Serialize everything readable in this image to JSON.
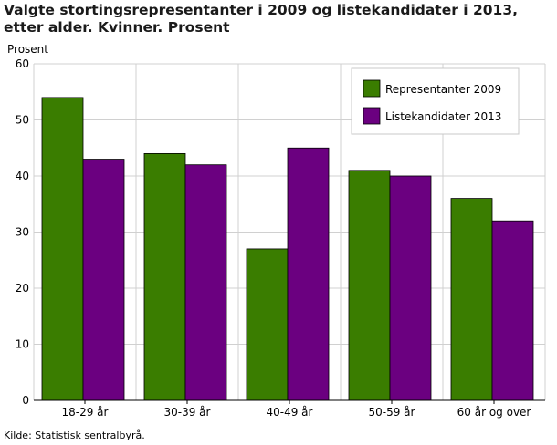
{
  "title": "Valgte stortingsrepresentanter i 2009 og listekandidater i 2013, etter alder. Kvinner. Prosent",
  "source": "Kilde: Statistisk sentralbyrå.",
  "chart_data": {
    "type": "bar",
    "title": "Valgte stortingsrepresentanter i 2009 og listekandidater i 2013, etter alder. Kvinner. Prosent",
    "xlabel": "",
    "ylabel": "Prosent",
    "ylim": [
      0,
      60
    ],
    "yticks": [
      0,
      10,
      20,
      30,
      40,
      50,
      60
    ],
    "grid": true,
    "legend_position": "top-right",
    "categories": [
      "18-29 år",
      "30-39 år",
      "40-49 år",
      "50-59 år",
      "60 år og over"
    ],
    "series": [
      {
        "name": "Representanter 2009",
        "color": "#3a7d00",
        "values": [
          54,
          44,
          27,
          41,
          36
        ]
      },
      {
        "name": "Listekandidater 2013",
        "color": "#6b0080",
        "values": [
          43,
          42,
          45,
          40,
          32
        ]
      }
    ]
  }
}
